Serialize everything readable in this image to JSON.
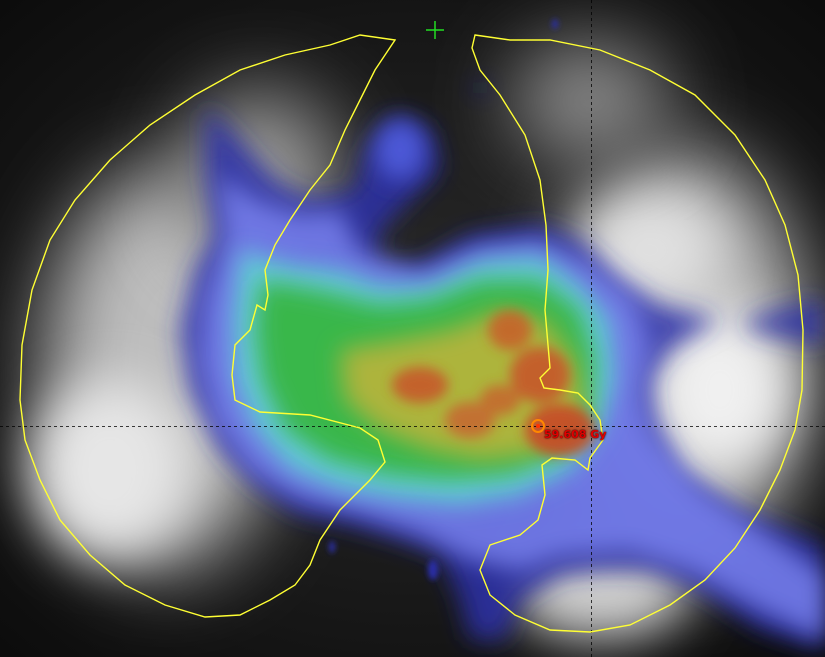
{
  "viewer": {
    "dose_readout": "59.608 Gy",
    "colors": {
      "contour": "#ffff33",
      "crosshair": "#22dd22",
      "probe": "#ff8800",
      "dose_text": "#e00000"
    }
  }
}
